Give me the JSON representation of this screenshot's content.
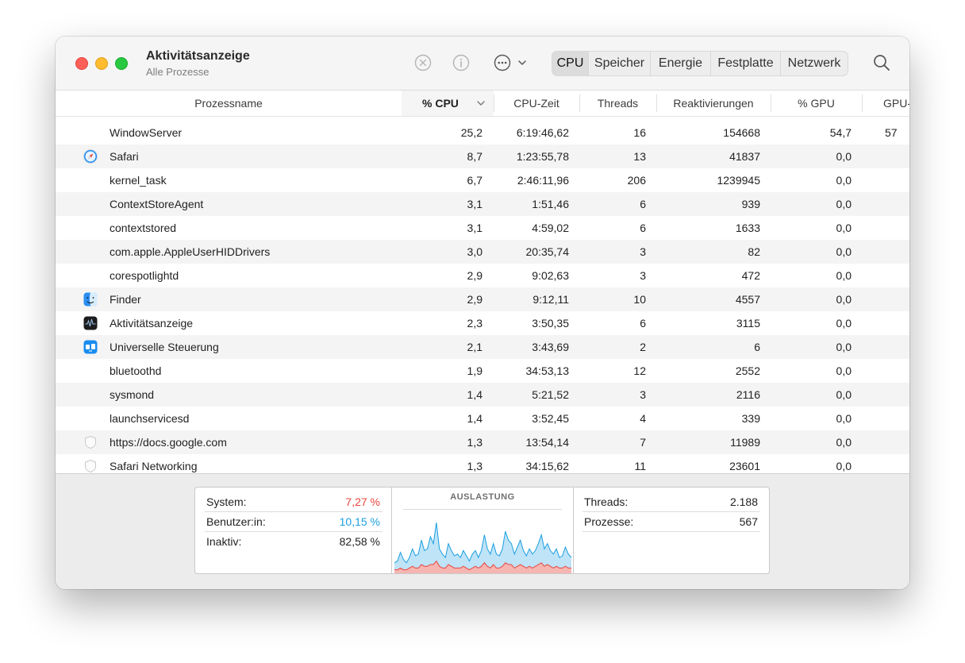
{
  "window": {
    "title": "Aktivitätsanzeige",
    "subtitle": "Alle Prozesse"
  },
  "toolbar": {
    "icons": [
      "stop-process-icon",
      "info-icon",
      "more-options-icon",
      "search-icon"
    ],
    "tabs": [
      "CPU",
      "Speicher",
      "Energie",
      "Festplatte",
      "Netzwerk"
    ],
    "active_tab": "CPU"
  },
  "columns": {
    "process_name": "Prozessname",
    "cpu": "% CPU",
    "cpu_time": "CPU-Zeit",
    "threads": "Threads",
    "wakeups": "Reaktivierungen",
    "gpu": "% GPU",
    "gpu_time": "GPU-"
  },
  "processes": [
    {
      "name": "WindowServer",
      "icon": "",
      "cpu": "25,2",
      "time": "6:19:46,62",
      "threads": "16",
      "wakeups": "154668",
      "gpu": "54,7",
      "gpu_time": "57"
    },
    {
      "name": "Safari",
      "icon": "safari-icon",
      "cpu": "8,7",
      "time": "1:23:55,78",
      "threads": "13",
      "wakeups": "41837",
      "gpu": "0,0",
      "gpu_time": ""
    },
    {
      "name": "kernel_task",
      "icon": "",
      "cpu": "6,7",
      "time": "2:46:11,96",
      "threads": "206",
      "wakeups": "1239945",
      "gpu": "0,0",
      "gpu_time": ""
    },
    {
      "name": "ContextStoreAgent",
      "icon": "",
      "cpu": "3,1",
      "time": "1:51,46",
      "threads": "6",
      "wakeups": "939",
      "gpu": "0,0",
      "gpu_time": ""
    },
    {
      "name": "contextstored",
      "icon": "",
      "cpu": "3,1",
      "time": "4:59,02",
      "threads": "6",
      "wakeups": "1633",
      "gpu": "0,0",
      "gpu_time": ""
    },
    {
      "name": "com.apple.AppleUserHIDDrivers",
      "icon": "",
      "cpu": "3,0",
      "time": "20:35,74",
      "threads": "3",
      "wakeups": "82",
      "gpu": "0,0",
      "gpu_time": ""
    },
    {
      "name": "corespotlightd",
      "icon": "",
      "cpu": "2,9",
      "time": "9:02,63",
      "threads": "3",
      "wakeups": "472",
      "gpu": "0,0",
      "gpu_time": ""
    },
    {
      "name": "Finder",
      "icon": "finder-icon",
      "cpu": "2,9",
      "time": "9:12,11",
      "threads": "10",
      "wakeups": "4557",
      "gpu": "0,0",
      "gpu_time": ""
    },
    {
      "name": "Aktivitätsanzeige",
      "icon": "activity-monitor-icon",
      "cpu": "2,3",
      "time": "3:50,35",
      "threads": "6",
      "wakeups": "3115",
      "gpu": "0,0",
      "gpu_time": ""
    },
    {
      "name": "Universelle Steuerung",
      "icon": "universal-control-icon",
      "cpu": "2,1",
      "time": "3:43,69",
      "threads": "2",
      "wakeups": "6",
      "gpu": "0,0",
      "gpu_time": ""
    },
    {
      "name": "bluetoothd",
      "icon": "",
      "cpu": "1,9",
      "time": "34:53,13",
      "threads": "12",
      "wakeups": "2552",
      "gpu": "0,0",
      "gpu_time": ""
    },
    {
      "name": "sysmond",
      "icon": "",
      "cpu": "1,4",
      "time": "5:21,52",
      "threads": "3",
      "wakeups": "2116",
      "gpu": "0,0",
      "gpu_time": ""
    },
    {
      "name": "launchservicesd",
      "icon": "",
      "cpu": "1,4",
      "time": "3:52,45",
      "threads": "4",
      "wakeups": "339",
      "gpu": "0,0",
      "gpu_time": ""
    },
    {
      "name": "https://docs.google.com",
      "icon": "web-content-shield-icon",
      "cpu": "1,3",
      "time": "13:54,14",
      "threads": "7",
      "wakeups": "11989",
      "gpu": "0,0",
      "gpu_time": ""
    },
    {
      "name": "Safari Networking",
      "icon": "web-content-shield-icon",
      "cpu": "1,3",
      "time": "34:15,62",
      "threads": "11",
      "wakeups": "23601",
      "gpu": "0,0",
      "gpu_time": ""
    }
  ],
  "summary": {
    "system_label": "System:",
    "system_value": "7,27 %",
    "user_label": "Benutzer:in:",
    "user_value": "10,15 %",
    "idle_label": "Inaktiv:",
    "idle_value": "82,58 %",
    "chart_title": "AUSLASTUNG",
    "threads_label": "Threads:",
    "threads_value": "2.188",
    "processes_label": "Prozesse:",
    "processes_value": "567",
    "colors": {
      "system": "#e8463e",
      "user": "#1a9fe0"
    }
  },
  "load_history": {
    "user": [
      4,
      5,
      9,
      6,
      4,
      6,
      10,
      7,
      8,
      14,
      9,
      10,
      16,
      12,
      22,
      10,
      8,
      6,
      12,
      9,
      7,
      8,
      6,
      9,
      7,
      5,
      8,
      9,
      6,
      9,
      16,
      10,
      8,
      12,
      8,
      7,
      10,
      18,
      14,
      12,
      8,
      11,
      14,
      9,
      7,
      10,
      8,
      9,
      12,
      16,
      10,
      12,
      9,
      8,
      10,
      6,
      7,
      11,
      8,
      6
    ],
    "system": [
      2,
      2,
      3,
      2,
      2,
      3,
      4,
      3,
      3,
      5,
      4,
      4,
      5,
      5,
      7,
      4,
      3,
      3,
      5,
      4,
      3,
      3,
      3,
      4,
      3,
      2,
      3,
      4,
      3,
      4,
      6,
      4,
      3,
      5,
      3,
      3,
      4,
      6,
      5,
      5,
      3,
      4,
      5,
      4,
      3,
      4,
      3,
      4,
      5,
      6,
      4,
      5,
      4,
      3,
      4,
      3,
      3,
      4,
      3,
      3
    ]
  }
}
